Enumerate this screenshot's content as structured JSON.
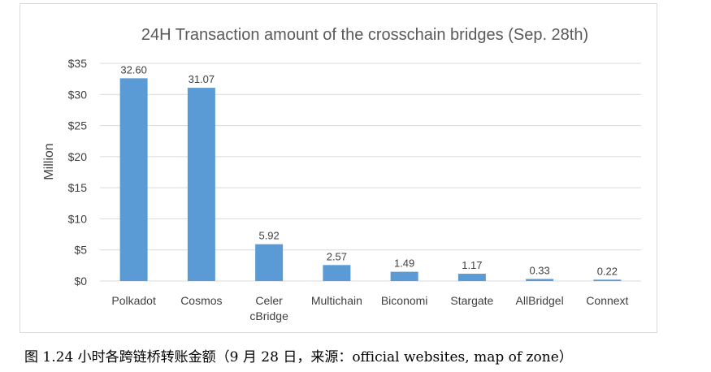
{
  "chart_data": {
    "type": "bar",
    "title": "24H Transaction amount of the crosschain bridges (Sep. 28th)",
    "ylabel": "Million",
    "xlabel": "",
    "ylim": [
      0,
      35
    ],
    "yticks": [
      0,
      5,
      10,
      15,
      20,
      25,
      30,
      35
    ],
    "ytick_labels": [
      "$0",
      "$5",
      "$10",
      "$15",
      "$20",
      "$25",
      "$30",
      "$35"
    ],
    "categories": [
      "Polkadot",
      "Cosmos",
      "Celer cBridge",
      "Multichain",
      "Biconomi",
      "Stargate",
      "AllBridgel",
      "Connext"
    ],
    "category_lines": [
      [
        "Polkadot"
      ],
      [
        "Cosmos"
      ],
      [
        "Celer",
        "cBridge"
      ],
      [
        "Multichain"
      ],
      [
        "Biconomi"
      ],
      [
        "Stargate"
      ],
      [
        "AllBridgel"
      ],
      [
        "Connext"
      ]
    ],
    "values": [
      32.6,
      31.07,
      5.92,
      2.57,
      1.49,
      1.17,
      0.33,
      0.22
    ],
    "value_labels": [
      "32.60",
      "31.07",
      "5.92",
      "2.57",
      "1.49",
      "1.17",
      "0.33",
      "0.22"
    ],
    "bar_color": "#5b9bd5",
    "grid": true,
    "legend": "none"
  },
  "caption": "图 1.24 小时各跨链桥转账金额（9 月 28 日，来源：official websites, map of zone）"
}
